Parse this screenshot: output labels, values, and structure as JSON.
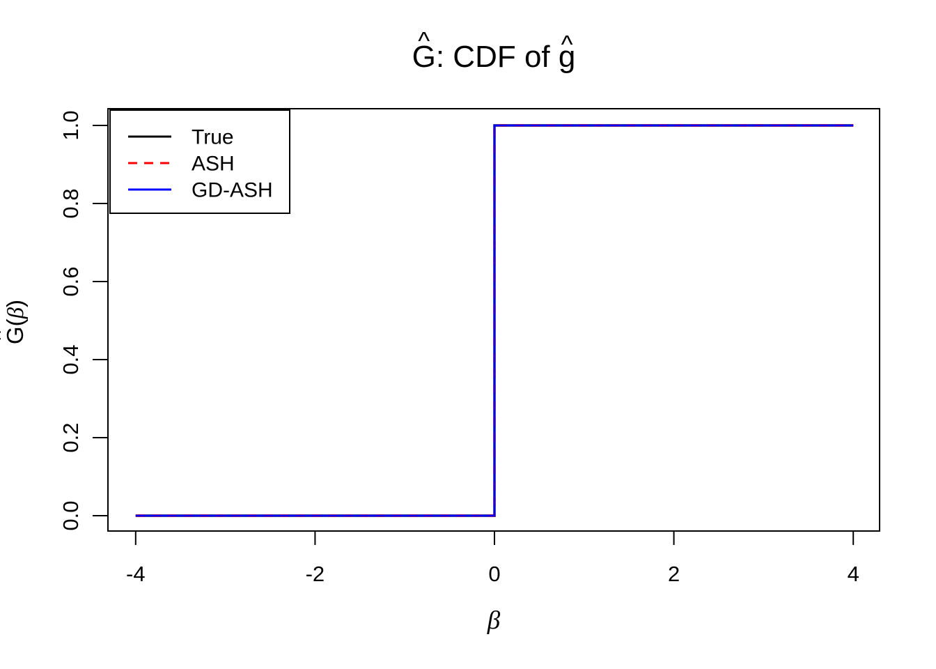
{
  "figure": {
    "title": {
      "full": "Ĝ: CDF of ĝ",
      "hat": "^",
      "t1": "G",
      "t2": ": CDF of ",
      "t3": "g"
    },
    "xlabel": "β",
    "ylabel": {
      "full": "Ĝ(β)",
      "hat": "^",
      "letter": "G",
      "open": "(",
      "beta": "β",
      "close": ")"
    }
  },
  "chart_data": {
    "type": "line",
    "subtype": "step-cdf",
    "title": "Ĝ: CDF of ĝ",
    "xlabel": "β",
    "ylabel": "Ĝ(β)",
    "xlim": [
      -4.3,
      4.3
    ],
    "ylim": [
      -0.04,
      1.04
    ],
    "grid": false,
    "x_ticks": [
      -4,
      -2,
      0,
      2,
      4
    ],
    "x_tick_labels": [
      "-4",
      "-2",
      "0",
      "2",
      "4"
    ],
    "y_ticks": [
      0,
      0.2,
      0.4,
      0.6,
      0.8,
      1
    ],
    "y_tick_labels": [
      "0.0",
      "0.2",
      "0.4",
      "0.6",
      "0.8",
      "1.0"
    ],
    "colors": {
      "true": "#000000",
      "ash": "#FF0000",
      "gd_ash": "#0000FF",
      "axis": "#000000",
      "background": "#FFFFFF"
    },
    "legend": {
      "position": "topleft",
      "entries": [
        {
          "label": "True",
          "color": "#000000",
          "style": "solid"
        },
        {
          "label": "ASH",
          "color": "#FF0000",
          "style": "dashed"
        },
        {
          "label": "GD-ASH",
          "color": "#0000FF",
          "style": "solid"
        }
      ]
    },
    "series": [
      {
        "name": "True",
        "color": "#000000",
        "style": "solid",
        "points": [
          [
            -4,
            0
          ],
          [
            0,
            0
          ],
          [
            0,
            1
          ],
          [
            4,
            1
          ]
        ]
      },
      {
        "name": "ASH",
        "color": "#FF0000",
        "style": "dashed",
        "points": [
          [
            -4,
            0
          ],
          [
            0,
            0
          ],
          [
            0,
            1
          ],
          [
            4,
            1
          ]
        ]
      },
      {
        "name": "GD-ASH",
        "color": "#0000FF",
        "style": "solid",
        "points": [
          [
            -4,
            0
          ],
          [
            0,
            0
          ],
          [
            0,
            1
          ],
          [
            4,
            1
          ]
        ]
      }
    ]
  }
}
